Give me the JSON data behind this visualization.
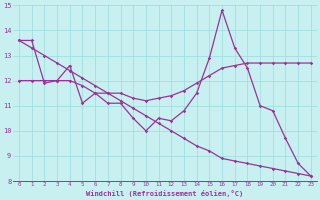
{
  "xlabel": "Windchill (Refroidissement éolien,°C)",
  "bg_color": "#c8f0f0",
  "line_color": "#993399",
  "grid_color": "#99dddd",
  "xlim": [
    -0.5,
    23.5
  ],
  "ylim": [
    8,
    15
  ],
  "xticks": [
    0,
    1,
    2,
    3,
    4,
    5,
    6,
    7,
    8,
    9,
    10,
    11,
    12,
    13,
    14,
    15,
    16,
    17,
    18,
    19,
    20,
    21,
    22,
    23
  ],
  "yticks": [
    8,
    9,
    10,
    11,
    12,
    13,
    14,
    15
  ],
  "line1": [
    13.6,
    13.6,
    11.9,
    12.0,
    12.6,
    11.1,
    11.5,
    11.1,
    11.1,
    10.5,
    10.0,
    10.5,
    10.4,
    10.8,
    11.5,
    12.9,
    14.8,
    13.3,
    12.5,
    11.0,
    10.8,
    9.7,
    8.7,
    8.2
  ],
  "line2": [
    12.0,
    12.0,
    12.0,
    12.0,
    12.0,
    11.8,
    11.5,
    11.5,
    11.5,
    11.3,
    11.2,
    11.3,
    11.4,
    11.6,
    11.9,
    12.2,
    12.5,
    12.6,
    12.7,
    12.7,
    12.7,
    12.7,
    12.7,
    12.7
  ],
  "line3": [
    13.6,
    13.3,
    13.0,
    12.7,
    12.4,
    12.1,
    11.8,
    11.5,
    11.2,
    10.9,
    10.6,
    10.3,
    10.0,
    9.7,
    9.4,
    9.2,
    8.9,
    8.8,
    8.7,
    8.6,
    8.5,
    8.4,
    8.3,
    8.2
  ]
}
